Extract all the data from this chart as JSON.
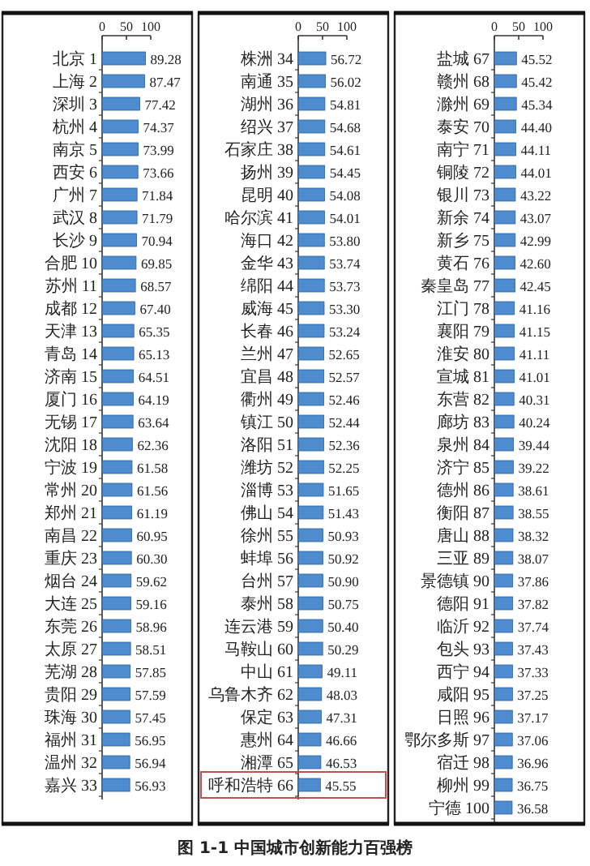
{
  "chart_data": [
    {
      "type": "bar",
      "orientation": "horizontal",
      "color": "#4f8ccf",
      "xlim": [
        0,
        100
      ],
      "xticks": [
        0,
        50,
        100
      ],
      "categories": [
        "北京 1",
        "上海 2",
        "深圳 3",
        "杭州 4",
        "南京 5",
        "西安 6",
        "广州 7",
        "武汉 8",
        "长沙 9",
        "合肥 10",
        "苏州 11",
        "成都 12",
        "天津 13",
        "青岛 14",
        "济南 15",
        "厦门 16",
        "无锡 17",
        "沈阳 18",
        "宁波 19",
        "常州 20",
        "郑州 21",
        "南昌 22",
        "重庆 23",
        "烟台 24",
        "大连 25",
        "东莞 26",
        "太原 27",
        "芜湖 28",
        "贵阳 29",
        "珠海 30",
        "福州 31",
        "温州 32",
        "嘉兴 33"
      ],
      "values": [
        89.28,
        87.47,
        77.42,
        74.37,
        73.99,
        73.66,
        71.84,
        71.79,
        70.94,
        69.85,
        68.57,
        67.4,
        65.35,
        65.13,
        64.51,
        64.19,
        63.64,
        62.36,
        61.58,
        61.56,
        61.19,
        60.95,
        60.3,
        59.62,
        59.16,
        58.96,
        58.51,
        57.85,
        57.59,
        57.45,
        56.95,
        56.94,
        56.93
      ],
      "value_labels": [
        "89.28",
        "87.47",
        "77.42",
        "74.37",
        "73.99",
        "73.66",
        "71.84",
        "71.79",
        "70.94",
        "69.85",
        "68.57",
        "67.40",
        "65.35",
        "65.13",
        "64.51",
        "64.19",
        "63.64",
        "62.36",
        "61.58",
        "61.56",
        "61.19",
        "60.95",
        "60.30",
        "59.62",
        "59.16",
        "58.96",
        "58.51",
        "57.85",
        "57.59",
        "57.45",
        "56.95",
        "56.94",
        "56.93"
      ]
    },
    {
      "type": "bar",
      "orientation": "horizontal",
      "color": "#4f8ccf",
      "xlim": [
        0,
        100
      ],
      "xticks": [
        0,
        50,
        100
      ],
      "annotations": [
        "图 1-1   中国城市创新能力百强榜"
      ],
      "categories": [
        "株洲 34",
        "南通 35",
        "湖州 36",
        "绍兴 37",
        "石家庄 38",
        "扬州 39",
        "昆明 40",
        "哈尔滨 41",
        "海口 42",
        "金华 43",
        "绵阳 44",
        "威海 45",
        "长春 46",
        "兰州 47",
        "宜昌 48",
        "衢州 49",
        "镇江 50",
        "洛阳 51",
        "潍坊 52",
        "淄博 53",
        "佛山 54",
        "徐州 55",
        "蚌埠 56",
        "台州 57",
        "泰州 58",
        "连云港 59",
        "马鞍山 60",
        "中山 61",
        "乌鲁木齐 62",
        "保定 63",
        "惠州 64",
        "湘潭 65",
        "呼和浩特 66"
      ],
      "values": [
        56.72,
        56.02,
        54.81,
        54.68,
        54.61,
        54.45,
        54.08,
        54.01,
        53.8,
        53.74,
        53.73,
        53.3,
        53.24,
        52.65,
        52.57,
        52.46,
        52.44,
        52.36,
        52.25,
        51.65,
        51.43,
        50.93,
        50.92,
        50.9,
        50.75,
        50.4,
        50.29,
        49.11,
        48.03,
        47.31,
        46.66,
        46.53,
        45.55
      ],
      "value_labels": [
        "56.72",
        "56.02",
        "54.81",
        "54.68",
        "54.61",
        "54.45",
        "54.08",
        "54.01",
        "53.80",
        "53.74",
        "53.73",
        "53.30",
        "53.24",
        "52.65",
        "52.57",
        "52.46",
        "52.44",
        "52.36",
        "52.25",
        "51.65",
        "51.43",
        "50.93",
        "50.92",
        "50.90",
        "50.75",
        "50.40",
        "50.29",
        "49.11",
        "48.03",
        "47.31",
        "46.66",
        "46.53",
        "45.55"
      ]
    },
    {
      "type": "bar",
      "orientation": "horizontal",
      "color": "#4f8ccf",
      "xlim": [
        0,
        100
      ],
      "xticks": [
        0,
        50,
        100
      ],
      "categories": [
        "盐城 67",
        "赣州 68",
        "滁州 69",
        "泰安 70",
        "南宁 71",
        "铜陵 72",
        "银川 73",
        "新余 74",
        "新乡 75",
        "黄石 76",
        "秦皇岛 77",
        "江门 78",
        "襄阳 79",
        "淮安 80",
        "宣城 81",
        "东营 82",
        "廊坊 83",
        "泉州 84",
        "济宁 85",
        "德州 86",
        "衡阳 87",
        "唐山 88",
        "三亚 89",
        "景德镇 90",
        "德阳 91",
        "临沂 92",
        "包头 93",
        "西宁 94",
        "咸阳 95",
        "日照 96",
        "鄂尔多斯 97",
        "宿迁 98",
        "柳州 99",
        "宁德 100"
      ],
      "values": [
        45.52,
        45.42,
        45.34,
        44.4,
        44.11,
        44.01,
        43.22,
        43.07,
        42.99,
        42.6,
        42.45,
        41.16,
        41.15,
        41.11,
        41.01,
        40.31,
        40.24,
        39.44,
        39.22,
        38.61,
        38.55,
        38.32,
        38.07,
        37.86,
        37.82,
        37.74,
        37.43,
        37.33,
        37.25,
        37.17,
        37.06,
        36.96,
        36.75,
        36.58
      ],
      "value_labels": [
        "45.52",
        "45.42",
        "45.34",
        "44.40",
        "44.11",
        "44.01",
        "43.22",
        "43.07",
        "42.99",
        "42.60",
        "42.45",
        "41.16",
        "41.15",
        "41.11",
        "41.01",
        "40.31",
        "40.24",
        "39.44",
        "39.22",
        "38.61",
        "38.55",
        "38.32",
        "38.07",
        "37.86",
        "37.82",
        "37.74",
        "37.43",
        "37.33",
        "37.25",
        "37.17",
        "37.06",
        "36.96",
        "36.75",
        "36.58"
      ]
    }
  ]
}
